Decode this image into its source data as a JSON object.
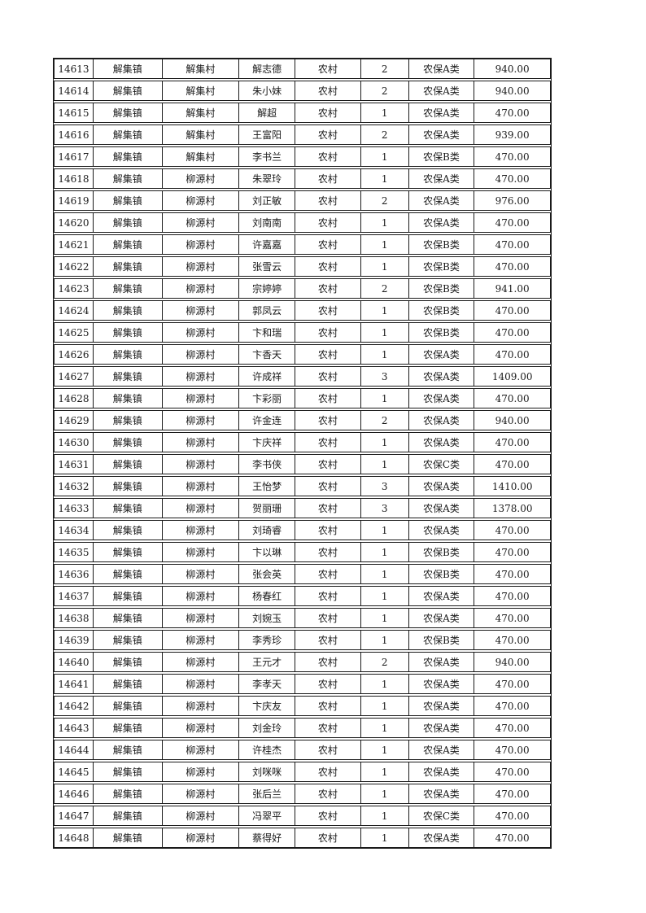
{
  "document": {
    "background_color": "#ffffff",
    "text_color": "#1a1a1a",
    "border_color": "#1a1a1a"
  },
  "table": {
    "column_keys": [
      "serial-number",
      "town",
      "village",
      "person-name",
      "residence-type",
      "person-count",
      "insurance-category",
      "amount"
    ],
    "rows": [
      [
        "14613",
        "解集镇",
        "解集村",
        "解志德",
        "农村",
        "2",
        "农保A类",
        "940.00"
      ],
      [
        "14614",
        "解集镇",
        "解集村",
        "朱小妹",
        "农村",
        "2",
        "农保A类",
        "940.00"
      ],
      [
        "14615",
        "解集镇",
        "解集村",
        "解超",
        "农村",
        "1",
        "农保A类",
        "470.00"
      ],
      [
        "14616",
        "解集镇",
        "解集村",
        "王富阳",
        "农村",
        "2",
        "农保A类",
        "939.00"
      ],
      [
        "14617",
        "解集镇",
        "解集村",
        "李书兰",
        "农村",
        "1",
        "农保B类",
        "470.00"
      ],
      [
        "14618",
        "解集镇",
        "柳源村",
        "朱翠玲",
        "农村",
        "1",
        "农保A类",
        "470.00"
      ],
      [
        "14619",
        "解集镇",
        "柳源村",
        "刘正敏",
        "农村",
        "2",
        "农保A类",
        "976.00"
      ],
      [
        "14620",
        "解集镇",
        "柳源村",
        "刘南南",
        "农村",
        "1",
        "农保A类",
        "470.00"
      ],
      [
        "14621",
        "解集镇",
        "柳源村",
        "许嘉嘉",
        "农村",
        "1",
        "农保B类",
        "470.00"
      ],
      [
        "14622",
        "解集镇",
        "柳源村",
        "张雪云",
        "农村",
        "1",
        "农保B类",
        "470.00"
      ],
      [
        "14623",
        "解集镇",
        "柳源村",
        "宗婷婷",
        "农村",
        "2",
        "农保B类",
        "941.00"
      ],
      [
        "14624",
        "解集镇",
        "柳源村",
        "郭凤云",
        "农村",
        "1",
        "农保B类",
        "470.00"
      ],
      [
        "14625",
        "解集镇",
        "柳源村",
        "卞和瑞",
        "农村",
        "1",
        "农保B类",
        "470.00"
      ],
      [
        "14626",
        "解集镇",
        "柳源村",
        "卞香天",
        "农村",
        "1",
        "农保A类",
        "470.00"
      ],
      [
        "14627",
        "解集镇",
        "柳源村",
        "许成祥",
        "农村",
        "3",
        "农保A类",
        "1409.00"
      ],
      [
        "14628",
        "解集镇",
        "柳源村",
        "卞彩丽",
        "农村",
        "1",
        "农保A类",
        "470.00"
      ],
      [
        "14629",
        "解集镇",
        "柳源村",
        "许金连",
        "农村",
        "2",
        "农保A类",
        "940.00"
      ],
      [
        "14630",
        "解集镇",
        "柳源村",
        "卞庆祥",
        "农村",
        "1",
        "农保A类",
        "470.00"
      ],
      [
        "14631",
        "解集镇",
        "柳源村",
        "李书侠",
        "农村",
        "1",
        "农保C类",
        "470.00"
      ],
      [
        "14632",
        "解集镇",
        "柳源村",
        "王怡梦",
        "农村",
        "3",
        "农保A类",
        "1410.00"
      ],
      [
        "14633",
        "解集镇",
        "柳源村",
        "贺丽珊",
        "农村",
        "3",
        "农保A类",
        "1378.00"
      ],
      [
        "14634",
        "解集镇",
        "柳源村",
        "刘琦睿",
        "农村",
        "1",
        "农保A类",
        "470.00"
      ],
      [
        "14635",
        "解集镇",
        "柳源村",
        "卞以琳",
        "农村",
        "1",
        "农保B类",
        "470.00"
      ],
      [
        "14636",
        "解集镇",
        "柳源村",
        "张会英",
        "农村",
        "1",
        "农保B类",
        "470.00"
      ],
      [
        "14637",
        "解集镇",
        "柳源村",
        "杨春红",
        "农村",
        "1",
        "农保A类",
        "470.00"
      ],
      [
        "14638",
        "解集镇",
        "柳源村",
        "刘婉玉",
        "农村",
        "1",
        "农保A类",
        "470.00"
      ],
      [
        "14639",
        "解集镇",
        "柳源村",
        "李秀珍",
        "农村",
        "1",
        "农保B类",
        "470.00"
      ],
      [
        "14640",
        "解集镇",
        "柳源村",
        "王元才",
        "农村",
        "2",
        "农保A类",
        "940.00"
      ],
      [
        "14641",
        "解集镇",
        "柳源村",
        "李孝天",
        "农村",
        "1",
        "农保A类",
        "470.00"
      ],
      [
        "14642",
        "解集镇",
        "柳源村",
        "卞庆友",
        "农村",
        "1",
        "农保A类",
        "470.00"
      ],
      [
        "14643",
        "解集镇",
        "柳源村",
        "刘金玲",
        "农村",
        "1",
        "农保A类",
        "470.00"
      ],
      [
        "14644",
        "解集镇",
        "柳源村",
        "许桂杰",
        "农村",
        "1",
        "农保A类",
        "470.00"
      ],
      [
        "14645",
        "解集镇",
        "柳源村",
        "刘咪咪",
        "农村",
        "1",
        "农保A类",
        "470.00"
      ],
      [
        "14646",
        "解集镇",
        "柳源村",
        "张后兰",
        "农村",
        "1",
        "农保A类",
        "470.00"
      ],
      [
        "14647",
        "解集镇",
        "柳源村",
        "冯翠平",
        "农村",
        "1",
        "农保C类",
        "470.00"
      ],
      [
        "14648",
        "解集镇",
        "柳源村",
        "蔡得好",
        "农村",
        "1",
        "农保A类",
        "470.00"
      ]
    ]
  }
}
